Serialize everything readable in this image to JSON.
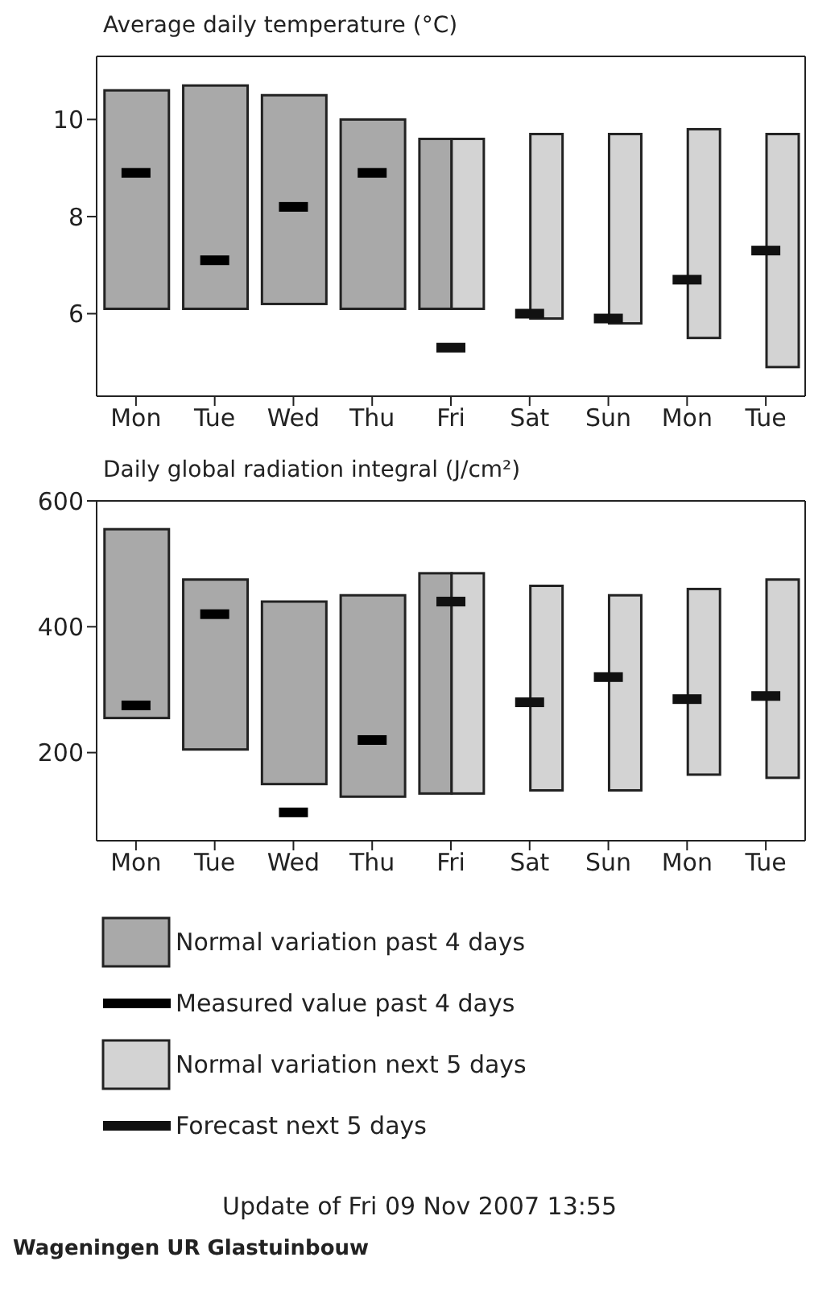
{
  "chart_data": [
    {
      "type": "bar",
      "title": "Average daily temperature (°C)",
      "categories": [
        "Mon",
        "Tue",
        "Wed",
        "Thu",
        "Fri",
        "Sat",
        "Sun",
        "Mon",
        "Tue"
      ],
      "ylim": [
        4.3,
        11.3
      ],
      "yticks": [
        6,
        8,
        10
      ],
      "grid": false,
      "legend": false,
      "series": [
        {
          "type": "bar",
          "color": "#a9a9a9",
          "base": [
            6.1,
            6.1,
            6.2,
            6.1,
            6.1,
            null,
            null,
            null,
            null
          ],
          "values": [
            4.5,
            4.6,
            4.3,
            3.9,
            3.5,
            null,
            null,
            null,
            null
          ]
        },
        {
          "type": "bar",
          "color": "#d3d3d3",
          "base": [
            null,
            null,
            null,
            null,
            6.1,
            5.9,
            5.8,
            5.5,
            4.9
          ],
          "values": [
            null,
            null,
            null,
            null,
            3.5,
            3.8,
            3.9,
            4.3,
            4.8
          ]
        },
        {
          "type": "scatter",
          "color": "#000000",
          "values": [
            8.9,
            7.1,
            8.2,
            8.9,
            null,
            null,
            null,
            null,
            null
          ]
        },
        {
          "type": "scatter",
          "color": "#111111",
          "values": [
            null,
            null,
            null,
            null,
            5.3,
            6.0,
            5.9,
            6.7,
            7.3
          ]
        }
      ]
    },
    {
      "type": "bar",
      "title": "Daily global radiation integral (J/cm²)",
      "categories": [
        "Mon",
        "Tue",
        "Wed",
        "Thu",
        "Fri",
        "Sat",
        "Sun",
        "Mon",
        "Tue"
      ],
      "ylim": [
        60,
        600
      ],
      "yticks": [
        200,
        400,
        600
      ],
      "grid": false,
      "legend": "bottom",
      "series": [
        {
          "type": "bar",
          "name": "Normal variation past 4 days",
          "color": "#a9a9a9",
          "base": [
            255,
            205,
            150,
            130,
            135,
            null,
            null,
            null,
            null
          ],
          "values": [
            300,
            270,
            290,
            320,
            350,
            null,
            null,
            null,
            null
          ]
        },
        {
          "type": "scatter",
          "name": "Measured value past 4 days",
          "color": "#000000",
          "values": [
            275,
            420,
            105,
            220,
            null,
            null,
            null,
            null,
            null
          ]
        },
        {
          "type": "bar",
          "name": "Normal variation next 5 days",
          "color": "#d3d3d3",
          "base": [
            null,
            null,
            null,
            null,
            135,
            140,
            140,
            165,
            160
          ],
          "values": [
            null,
            null,
            null,
            null,
            350,
            325,
            310,
            295,
            315
          ]
        },
        {
          "type": "scatter",
          "name": "Forecast next 5 days",
          "color": "#111111",
          "values": [
            null,
            null,
            null,
            null,
            440,
            280,
            320,
            285,
            290
          ]
        }
      ],
      "annotations": [
        "Update of Fri 09 Nov 2007 13:55",
        "Wageningen UR Glastuinbouw"
      ]
    }
  ]
}
